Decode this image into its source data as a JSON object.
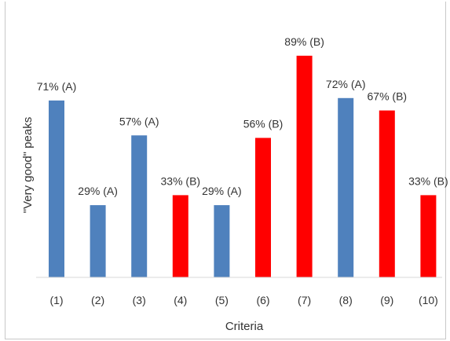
{
  "chart_data": {
    "type": "bar",
    "categories": [
      "(1)",
      "(2)",
      "(3)",
      "(4)",
      "(5)",
      "(6)",
      "(7)",
      "(8)",
      "(9)",
      "(10)"
    ],
    "values": [
      71,
      29,
      57,
      33,
      29,
      56,
      89,
      72,
      67,
      33
    ],
    "data_labels": [
      "71% (A)",
      "29% (A)",
      "57% (A)",
      "33% (B)",
      "29% (A)",
      "56% (B)",
      "89% (B)",
      "72% (A)",
      "67% (B)",
      "33% (B)"
    ],
    "groups": [
      "A",
      "A",
      "A",
      "B",
      "A",
      "B",
      "B",
      "A",
      "B",
      "B"
    ],
    "colors": {
      "A": "#4f81bd",
      "B": "#ff0000"
    },
    "xlabel": "Criteria",
    "ylabel": "\"Very good\" peaks",
    "ylim": [
      0,
      100
    ],
    "grid": false,
    "legend": "none"
  }
}
